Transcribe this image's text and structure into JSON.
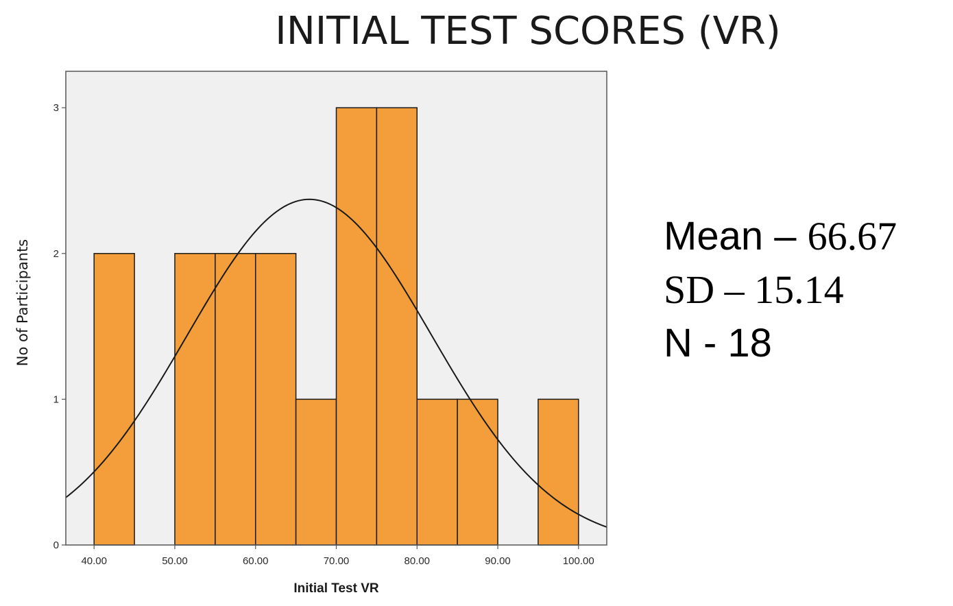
{
  "slide_title": "INITIAL TEST SCORES (VR)",
  "stats": {
    "mean_label": "Mean – ",
    "mean_value": "66.67",
    "sd_label": "SD – 15.14",
    "n_label": "N - 18"
  },
  "colors": {
    "bar_fill": "#F39E3A",
    "bar_stroke": "#1a1a1a",
    "plot_bg": "#F0F0F0",
    "curve": "#1a1a1a"
  },
  "chart_data": {
    "type": "bar",
    "title": "",
    "xlabel": "Initial Test VR",
    "ylabel": "No of Participants",
    "bin_width": 5,
    "bins": [
      {
        "start": 40,
        "end": 45,
        "count": 2
      },
      {
        "start": 45,
        "end": 50,
        "count": 0
      },
      {
        "start": 50,
        "end": 55,
        "count": 2
      },
      {
        "start": 55,
        "end": 60,
        "count": 2
      },
      {
        "start": 60,
        "end": 65,
        "count": 2
      },
      {
        "start": 65,
        "end": 70,
        "count": 1
      },
      {
        "start": 70,
        "end": 75,
        "count": 3
      },
      {
        "start": 75,
        "end": 80,
        "count": 3
      },
      {
        "start": 80,
        "end": 85,
        "count": 1
      },
      {
        "start": 85,
        "end": 90,
        "count": 1
      },
      {
        "start": 90,
        "end": 95,
        "count": 0
      },
      {
        "start": 95,
        "end": 100,
        "count": 1
      }
    ],
    "normal_curve": {
      "mean": 66.67,
      "sd": 15.14,
      "n": 18
    },
    "xlim": [
      36.5,
      103.5
    ],
    "ylim": [
      0,
      3.25
    ],
    "xticks": [
      "40.00",
      "50.00",
      "60.00",
      "70.00",
      "80.00",
      "90.00",
      "100.00"
    ],
    "xtick_values": [
      40,
      50,
      60,
      70,
      80,
      90,
      100
    ],
    "yticks": [
      "0",
      "1",
      "2",
      "3"
    ],
    "ytick_values": [
      0,
      1,
      2,
      3
    ],
    "grid": false,
    "legend": "none"
  }
}
